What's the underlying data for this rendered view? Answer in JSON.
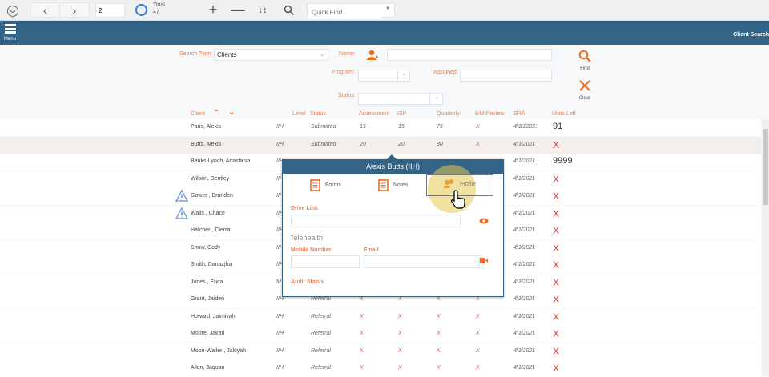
{
  "toolbar": {
    "page": "2",
    "total_label": "Total",
    "total_value": "47",
    "quick_find_placeholder": "Quick Find"
  },
  "header": {
    "menu_label": "Menu",
    "title": "Client Search"
  },
  "search": {
    "search_type_label": "Search Type:",
    "search_type_value": "Clients",
    "name_label": "Name:",
    "program_label": "Program:",
    "assigned_label": "Assigned:",
    "status_label": "Status:",
    "find_label": "Find",
    "clear_label": "Clear"
  },
  "columns": {
    "client": "Client",
    "level": "Level",
    "status": "Status",
    "assessment": "Assessment",
    "isp": "ISP",
    "quarterly": "Quarterly",
    "review": "6/M Review",
    "sra": "SRA",
    "units": "Units Left"
  },
  "rows": [
    {
      "client": "Paris, Alexis",
      "level": "IIH",
      "status": "Submitted",
      "assessment": "15",
      "isp": "15",
      "quarterly": "75",
      "review": "X",
      "sra": "4/10/2021",
      "units": "91"
    },
    {
      "client": "Butts, Alexis",
      "level": "IIH",
      "status": "Submitted",
      "assessment": "20",
      "isp": "20",
      "quarterly": "80",
      "review": "X",
      "sra": "4/1/2021",
      "units": "X"
    },
    {
      "client": "Banks-Lynch, Anastasia",
      "level": "IIH",
      "sra": "4/1/2021",
      "units": "9999"
    },
    {
      "client": "Wilson, Bentley",
      "level": "IIH",
      "sra": "4/1/2021",
      "units": "X"
    },
    {
      "client": "Gower , Branden",
      "level": "IIH",
      "sra": "4/1/2021",
      "units": "X",
      "warning": true
    },
    {
      "client": "Walls , Chace",
      "level": "IIH",
      "sra": "4/1/2021",
      "units": "X",
      "warning": true
    },
    {
      "client": "Hatcher , Cierra",
      "level": "IIH",
      "sra": "4/1/2021",
      "units": "X"
    },
    {
      "client": "Snow, Cody",
      "level": "IIH",
      "sra": "4/1/2021",
      "units": "X"
    },
    {
      "client": "Smith, Danazjha",
      "level": "IIH",
      "sra": "4/1/2021",
      "units": "X"
    },
    {
      "client": "Jones , Erica",
      "level": "M",
      "sra": "4/1/2021",
      "units": "X"
    },
    {
      "client": "Grant, Jaiden",
      "level": "IIH",
      "status": "Referral",
      "assessment": "X",
      "isp": "X",
      "quarterly": "X",
      "review": "X",
      "sra": "4/1/2021",
      "units": "X"
    },
    {
      "client": "Howard, Jaimiyah",
      "level": "IIH",
      "status": "Referral",
      "assessment": "X",
      "isp": "X",
      "quarterly": "X",
      "review": "X",
      "sra": "4/1/2021",
      "units": "X"
    },
    {
      "client": "Moore, Jakari",
      "level": "IIH",
      "status": "Referral",
      "assessment": "X",
      "isp": "X",
      "quarterly": "X",
      "review": "X",
      "sra": "4/1/2021",
      "units": "X"
    },
    {
      "client": "Moon-Waller , Jakiyah",
      "level": "IIH",
      "status": "Referral",
      "assessment": "X",
      "isp": "X",
      "quarterly": "X",
      "review": "X",
      "sra": "4/1/2021",
      "units": "X"
    },
    {
      "client": "Allen, Jaquan",
      "level": "IIH",
      "status": "Referral",
      "assessment": "X",
      "isp": "X",
      "quarterly": "X",
      "review": "X",
      "sra": "4/1/2021",
      "units": "X"
    }
  ],
  "popup": {
    "title": "Alexis Butts (IIH)",
    "forms": "Forms",
    "notes": "Notes",
    "profile": "Profile",
    "drive_link": "Drive Link",
    "telehealth": "Telehealth",
    "mobile": "Mobile Number",
    "email": "Email",
    "audit": "Audit Status"
  },
  "colors": {
    "header": "#336386",
    "accent": "#f0804a",
    "error": "#e03a3a"
  }
}
